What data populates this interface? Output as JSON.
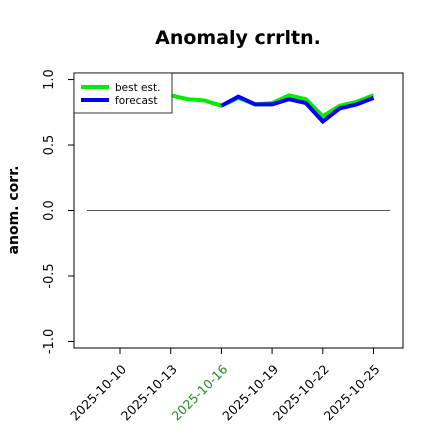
{
  "chart_data": {
    "type": "line",
    "title": "Anomaly crrltn.",
    "ylabel": "anom. corr.",
    "xlabel": "",
    "ylim": [
      -1.05,
      1.05
    ],
    "yticks": [
      "-1.0",
      "-0.5",
      "0.0",
      "0.5",
      "1.0"
    ],
    "x": [
      "2025-10-10",
      "2025-10-11",
      "2025-10-12",
      "2025-10-13",
      "2025-10-14",
      "2025-10-15",
      "2025-10-16",
      "2025-10-17",
      "2025-10-18",
      "2025-10-19",
      "2025-10-20",
      "2025-10-21",
      "2025-10-22",
      "2025-10-23",
      "2025-10-24",
      "2025-10-25"
    ],
    "xticks": [
      "2025-10-10",
      "2025-10-13",
      "2025-10-16",
      "2025-10-19",
      "2025-10-22",
      "2025-10-25"
    ],
    "highlighted_tick": "2025-10-16",
    "highlight_color": "#228b22",
    "series": [
      {
        "name": "best est.",
        "color": "#00ee00",
        "values": [
          0.76,
          0.82,
          0.86,
          0.88,
          0.85,
          0.84,
          0.8,
          0.86,
          0.81,
          0.82,
          0.88,
          0.85,
          0.72,
          0.8,
          0.83,
          0.88
        ]
      },
      {
        "name": "forecast",
        "color": "#0000ff",
        "values": [
          null,
          null,
          null,
          null,
          null,
          null,
          0.8,
          0.87,
          0.81,
          0.81,
          0.85,
          0.82,
          0.68,
          0.78,
          0.81,
          0.86
        ]
      }
    ],
    "reference_line": 0.0,
    "grid": false,
    "legend_position": "top-left"
  }
}
